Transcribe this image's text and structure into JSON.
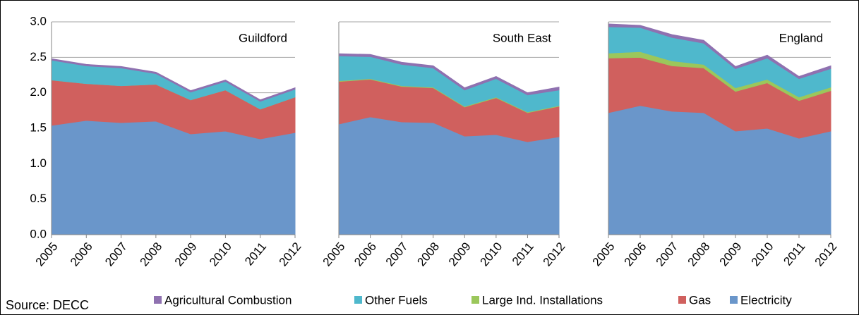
{
  "source": "Source: DECC",
  "chart_data": {
    "type": "area",
    "stacked": true,
    "panels": [
      "Guildford",
      "South East",
      "England"
    ],
    "categories": [
      "2005",
      "2006",
      "2007",
      "2008",
      "2009",
      "2010",
      "2011",
      "2012"
    ],
    "ylim": [
      0,
      3
    ],
    "yticks": [
      {
        "value": 0,
        "label": "0.0"
      },
      {
        "value": 0.5,
        "label": "0.5"
      },
      {
        "value": 1,
        "label": "1.0"
      },
      {
        "value": 1.5,
        "label": "1.5"
      },
      {
        "value": 2,
        "label": "2.0"
      },
      {
        "value": 2.5,
        "label": "2.5"
      },
      {
        "value": 3,
        "label": "3.0"
      }
    ],
    "grid": true,
    "legend_position": "bottom",
    "series": [
      {
        "name": "Electricity",
        "color": "#6a96ca",
        "values": [
          [
            1.54,
            1.61,
            1.58,
            1.6,
            1.42,
            1.46,
            1.35,
            1.44
          ],
          [
            1.56,
            1.66,
            1.59,
            1.58,
            1.39,
            1.41,
            1.31,
            1.38
          ],
          [
            1.72,
            1.82,
            1.74,
            1.72,
            1.46,
            1.5,
            1.36,
            1.46
          ]
        ]
      },
      {
        "name": "Gas",
        "color": "#d0605e",
        "values": [
          [
            0.64,
            0.52,
            0.52,
            0.52,
            0.48,
            0.58,
            0.42,
            0.5
          ],
          [
            0.6,
            0.53,
            0.5,
            0.49,
            0.41,
            0.52,
            0.41,
            0.43
          ],
          [
            0.77,
            0.68,
            0.64,
            0.63,
            0.56,
            0.64,
            0.53,
            0.57
          ]
        ]
      },
      {
        "name": "Large Ind. Installations",
        "color": "#9bc75b",
        "values": [
          [
            0,
            0,
            0,
            0,
            0,
            0,
            0,
            0
          ],
          [
            0.01,
            0.01,
            0.01,
            0.01,
            0.01,
            0.01,
            0.01,
            0.01
          ],
          [
            0.07,
            0.08,
            0.07,
            0.05,
            0.05,
            0.05,
            0.05,
            0.05
          ]
        ]
      },
      {
        "name": "Other Fuels",
        "color": "#4fb8cc",
        "values": [
          [
            0.28,
            0.25,
            0.25,
            0.15,
            0.11,
            0.12,
            0.11,
            0.11
          ],
          [
            0.35,
            0.31,
            0.3,
            0.27,
            0.23,
            0.26,
            0.24,
            0.22
          ],
          [
            0.37,
            0.34,
            0.33,
            0.3,
            0.27,
            0.3,
            0.26,
            0.26
          ]
        ]
      },
      {
        "name": "Agricultural Combustion",
        "color": "#8f71b0",
        "values": [
          [
            0.02,
            0.02,
            0.02,
            0.02,
            0.02,
            0.02,
            0.02,
            0.02
          ],
          [
            0.03,
            0.03,
            0.03,
            0.03,
            0.03,
            0.03,
            0.03,
            0.04
          ],
          [
            0.04,
            0.03,
            0.04,
            0.04,
            0.03,
            0.04,
            0.03,
            0.04
          ]
        ]
      }
    ]
  }
}
